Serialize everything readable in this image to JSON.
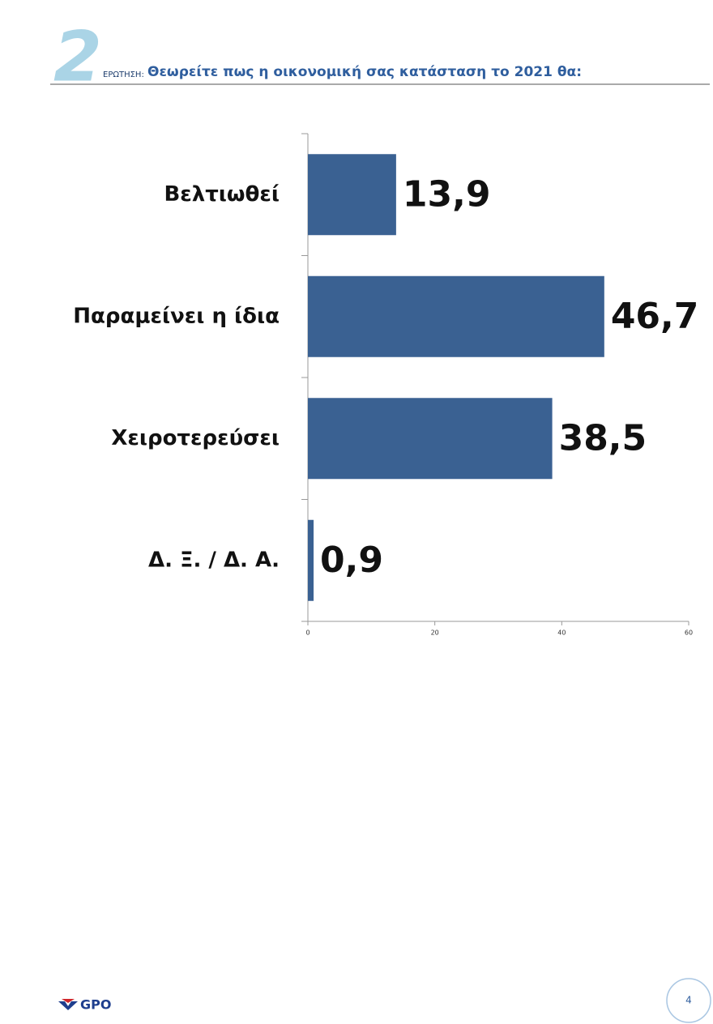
{
  "question_number": "2",
  "question_prefix": "ΕΡΩΤΗΣΗ:",
  "chart_data": {
    "type": "hbar",
    "title": "Θεωρείτε πως η οικονομική σας κατάσταση το 2021 θα:",
    "categories": [
      "Βελτιωθεί",
      "Παραμείνει η ίδια",
      "Χειροτερεύσει",
      "Δ. Ξ. / Δ. Α."
    ],
    "values": [
      13.9,
      46.7,
      38.5,
      0.9
    ],
    "value_labels": [
      "13,9",
      "46,7",
      "38,5",
      "0,9"
    ],
    "color": "#3a6192",
    "xlim": [
      0,
      60
    ],
    "xticks": [
      0,
      20,
      40,
      60
    ]
  },
  "logo": "GPO",
  "page_number": "4"
}
